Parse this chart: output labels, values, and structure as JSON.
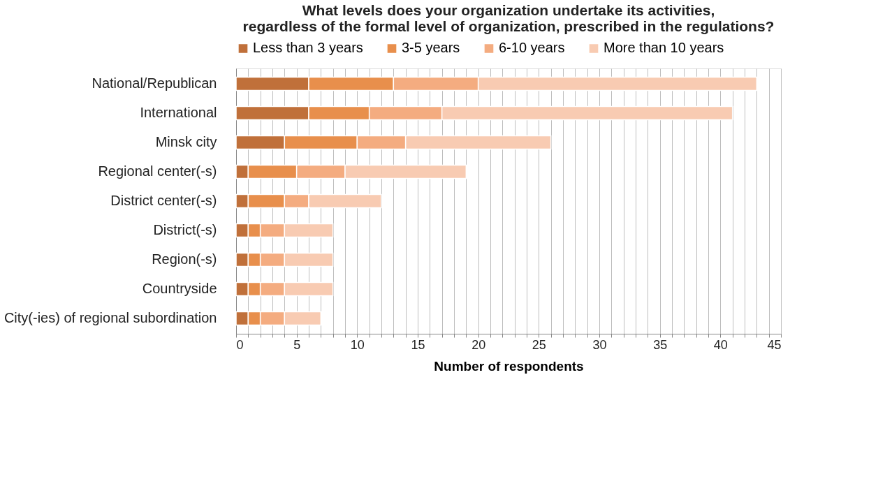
{
  "chart_data": {
    "type": "bar",
    "orientation": "horizontal",
    "stacked": true,
    "title": [
      "What levels does your organization undertake its activities,",
      "regardless of the formal level of organization, prescribed in the regulations?"
    ],
    "xlabel": "Number of respondents",
    "categories": [
      "National/Republican",
      "International",
      "Minsk city",
      "Regional center(-s)",
      "District center(-s)",
      "District(-s)",
      "Region(-s)",
      "Countryside",
      "City(-ies) of regional subordination"
    ],
    "series": [
      {
        "name": "Less than 3 years",
        "color": "#c0703a",
        "values": [
          6,
          6,
          4,
          1,
          1,
          1,
          1,
          1,
          1
        ]
      },
      {
        "name": "3-5 years",
        "color": "#e88f4c",
        "values": [
          7,
          5,
          6,
          4,
          3,
          1,
          1,
          1,
          1
        ]
      },
      {
        "name": "6-10 years",
        "color": "#f4ac80",
        "values": [
          7,
          6,
          4,
          4,
          2,
          2,
          2,
          2,
          2
        ]
      },
      {
        "name": "More than 10 years",
        "color": "#f8cbb2",
        "values": [
          23,
          24,
          12,
          10,
          6,
          4,
          4,
          4,
          3
        ]
      }
    ],
    "xlim": [
      0,
      45
    ],
    "xticks": [
      0,
      {
        "value": 1,
        "label": null
      },
      {
        "value": 2,
        "label": null
      },
      {
        "value": 3,
        "label": null
      },
      {
        "value": 4,
        "label": null
      },
      5,
      {
        "value": 6,
        "label": null
      },
      {
        "value": 7,
        "label": null
      },
      {
        "value": 8,
        "label": null
      },
      {
        "value": 9,
        "label": null
      },
      10,
      {
        "value": 11,
        "label": null
      },
      {
        "value": 12,
        "label": null
      },
      {
        "value": 13,
        "label": null
      },
      {
        "value": 14,
        "label": null
      },
      15,
      {
        "value": 16,
        "label": null
      },
      {
        "value": 17,
        "label": null
      },
      {
        "value": 18,
        "label": null
      },
      {
        "value": 19,
        "label": null
      },
      20,
      {
        "value": 21,
        "label": null
      },
      {
        "value": 22,
        "label": null
      },
      {
        "value": 23,
        "label": null
      },
      {
        "value": 24,
        "label": null
      },
      25,
      {
        "value": 26,
        "label": null
      },
      {
        "value": 27,
        "label": null
      },
      {
        "value": 28,
        "label": null
      },
      {
        "value": 29,
        "label": null
      },
      30,
      {
        "value": 31,
        "label": null
      },
      {
        "value": 32,
        "label": null
      },
      {
        "value": 33,
        "label": null
      },
      {
        "value": 34,
        "label": null
      },
      35,
      {
        "value": 36,
        "label": null
      },
      {
        "value": 37,
        "label": null
      },
      {
        "value": 38,
        "label": null
      },
      {
        "value": 39,
        "label": null
      },
      40,
      {
        "value": 41,
        "label": null
      },
      {
        "value": 42,
        "label": null
      },
      {
        "value": 43,
        "label": null
      },
      {
        "value": 44,
        "label": null
      },
      45
    ],
    "grid": "x",
    "legend": "top"
  }
}
